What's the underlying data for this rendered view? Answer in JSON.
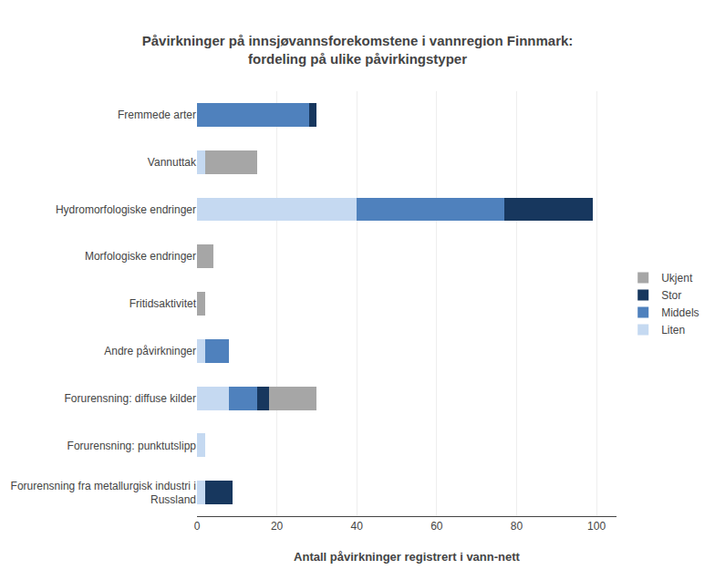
{
  "chart_data": {
    "type": "bar",
    "orientation": "horizontal",
    "stacked": true,
    "title": "Påvirkninger på innsjøvannsforekomstene i vannregion Finnmark:\nfordeling på ulike påvirkingstyper",
    "xlabel": "Antall påvirkninger registrert i vann-nett",
    "categories": [
      "Fremmede arter",
      "Vannuttak",
      "Hydromorfologiske endringer",
      "Morfologiske endringer",
      "Fritidsaktivitet",
      "Andre påvirkninger",
      "Forurensning: diffuse kilder",
      "Forurensning: punktutslipp",
      "Forurensning fra metallurgisk industri i\nRussland"
    ],
    "series": [
      {
        "name": "Liten",
        "color": "#c5d9f1",
        "values": [
          0,
          2,
          40,
          0,
          0,
          2,
          8,
          2,
          2
        ]
      },
      {
        "name": "Middels",
        "color": "#4f81bd",
        "values": [
          28,
          0,
          37,
          0,
          0,
          6,
          7,
          0,
          0
        ]
      },
      {
        "name": "Stor",
        "color": "#17375e",
        "values": [
          2,
          0,
          22,
          0,
          0,
          0,
          3,
          0,
          7
        ]
      },
      {
        "name": "Ukjent",
        "color": "#a6a6a6",
        "values": [
          0,
          13,
          0,
          4,
          2,
          0,
          12,
          0,
          0
        ]
      }
    ],
    "xlim": [
      0,
      105
    ],
    "xticks": [
      0,
      20,
      40,
      60,
      80,
      100
    ],
    "grid": "x",
    "legend": "right"
  }
}
